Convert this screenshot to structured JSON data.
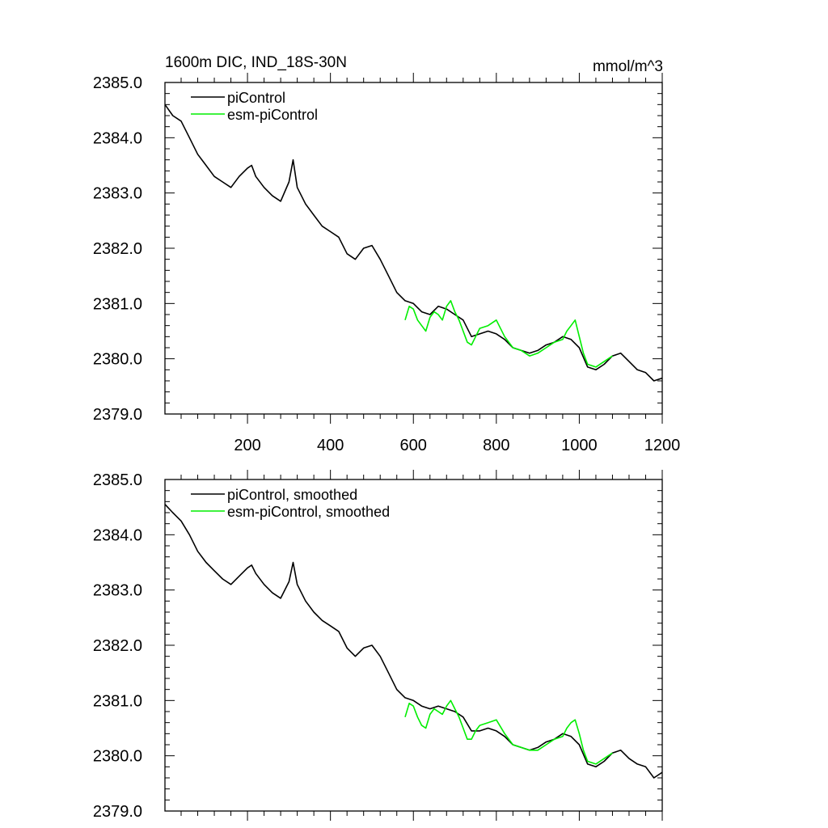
{
  "figure": {
    "title": "1600m DIC, IND_18S-30N",
    "units": "mmol/m^3",
    "colors": {
      "piControl": "#000000",
      "esm-piControl": "#00ee00",
      "axis": "#000000",
      "background": "#ffffff"
    }
  },
  "chart_data": [
    {
      "type": "line",
      "panel": "top",
      "title": "1600m DIC, IND_18S-30N",
      "units_label": "mmol/m^3",
      "xlim": [
        1,
        1200
      ],
      "ylim": [
        2379.0,
        2385.0
      ],
      "x_ticks": [
        200,
        400,
        600,
        800,
        1000,
        1200
      ],
      "x_tick_labels": [
        "200",
        "400",
        "600",
        "800",
        "1000",
        "1200"
      ],
      "y_ticks": [
        2379.0,
        2380.0,
        2381.0,
        2382.0,
        2383.0,
        2384.0,
        2385.0
      ],
      "y_tick_labels": [
        "2379.0",
        "2380.0",
        "2381.0",
        "2382.0",
        "2383.0",
        "2384.0",
        "2385.0"
      ],
      "legend": [
        "piControl",
        "esm-piControl"
      ],
      "legend_position": "top-left",
      "series": [
        {
          "name": "piControl",
          "color": "#000000",
          "x": [
            1,
            20,
            40,
            60,
            80,
            100,
            120,
            140,
            160,
            180,
            200,
            210,
            220,
            240,
            260,
            280,
            300,
            310,
            320,
            340,
            360,
            380,
            400,
            420,
            440,
            460,
            480,
            500,
            520,
            540,
            560,
            580,
            600,
            620,
            640,
            660,
            680,
            700,
            720,
            740,
            760,
            780,
            800,
            820,
            840,
            860,
            880,
            900,
            920,
            940,
            960,
            980,
            1000,
            1020,
            1040,
            1060,
            1080,
            1100,
            1120,
            1140,
            1160,
            1180,
            1200
          ],
          "y": [
            2384.6,
            2384.4,
            2384.3,
            2384.0,
            2383.7,
            2383.5,
            2383.3,
            2383.2,
            2383.1,
            2383.3,
            2383.45,
            2383.5,
            2383.3,
            2383.1,
            2382.95,
            2382.85,
            2383.2,
            2383.6,
            2383.1,
            2382.8,
            2382.6,
            2382.4,
            2382.3,
            2382.2,
            2381.9,
            2381.8,
            2382.0,
            2382.05,
            2381.8,
            2381.5,
            2381.2,
            2381.05,
            2381.0,
            2380.85,
            2380.8,
            2380.95,
            2380.9,
            2380.8,
            2380.7,
            2380.4,
            2380.45,
            2380.5,
            2380.45,
            2380.35,
            2380.2,
            2380.15,
            2380.1,
            2380.15,
            2380.25,
            2380.3,
            2380.4,
            2380.35,
            2380.2,
            2379.85,
            2379.8,
            2379.9,
            2380.05,
            2380.1,
            2379.95,
            2379.8,
            2379.75,
            2379.6,
            2379.65
          ]
        },
        {
          "name": "esm-piControl",
          "color": "#00ee00",
          "x": [
            580,
            590,
            600,
            610,
            620,
            630,
            640,
            650,
            660,
            670,
            680,
            690,
            700,
            710,
            720,
            730,
            740,
            750,
            760,
            780,
            800,
            820,
            840,
            860,
            880,
            900,
            920,
            940,
            960,
            970,
            980,
            990,
            1000,
            1010,
            1020,
            1040,
            1060,
            1080
          ],
          "y": [
            2380.7,
            2380.95,
            2380.9,
            2380.7,
            2380.6,
            2380.5,
            2380.75,
            2380.85,
            2380.8,
            2380.7,
            2380.95,
            2381.05,
            2380.85,
            2380.7,
            2380.5,
            2380.3,
            2380.25,
            2380.4,
            2380.55,
            2380.6,
            2380.7,
            2380.4,
            2380.2,
            2380.15,
            2380.05,
            2380.1,
            2380.2,
            2380.3,
            2380.35,
            2380.5,
            2380.6,
            2380.7,
            2380.4,
            2380.1,
            2379.9,
            2379.85,
            2379.95,
            2380.05
          ]
        }
      ]
    },
    {
      "type": "line",
      "panel": "bottom",
      "xlim": [
        1,
        1200
      ],
      "ylim": [
        2379.0,
        2385.0
      ],
      "x_ticks": [
        200,
        400,
        600,
        800,
        1000,
        1200
      ],
      "y_ticks": [
        2379.0,
        2380.0,
        2381.0,
        2382.0,
        2383.0,
        2384.0,
        2385.0
      ],
      "y_tick_labels": [
        "2379.0",
        "2380.0",
        "2381.0",
        "2382.0",
        "2383.0",
        "2384.0",
        "2385.0"
      ],
      "legend": [
        "piControl, smoothed",
        "esm-piControl, smoothed"
      ],
      "legend_position": "top-left",
      "series": [
        {
          "name": "piControl, smoothed",
          "color": "#000000",
          "x": [
            1,
            20,
            40,
            60,
            80,
            100,
            120,
            140,
            160,
            180,
            200,
            210,
            220,
            240,
            260,
            280,
            300,
            310,
            320,
            340,
            360,
            380,
            400,
            420,
            440,
            460,
            480,
            500,
            520,
            540,
            560,
            580,
            600,
            620,
            640,
            660,
            680,
            700,
            720,
            740,
            760,
            780,
            800,
            820,
            840,
            860,
            880,
            900,
            920,
            940,
            960,
            980,
            1000,
            1020,
            1040,
            1060,
            1080,
            1100,
            1120,
            1140,
            1160,
            1180,
            1200
          ],
          "y": [
            2384.55,
            2384.4,
            2384.25,
            2384.0,
            2383.7,
            2383.5,
            2383.35,
            2383.2,
            2383.1,
            2383.25,
            2383.4,
            2383.45,
            2383.3,
            2383.1,
            2382.95,
            2382.85,
            2383.15,
            2383.5,
            2383.1,
            2382.8,
            2382.6,
            2382.45,
            2382.35,
            2382.25,
            2381.95,
            2381.8,
            2381.95,
            2382.0,
            2381.8,
            2381.5,
            2381.2,
            2381.05,
            2381.0,
            2380.9,
            2380.85,
            2380.9,
            2380.85,
            2380.8,
            2380.7,
            2380.45,
            2380.45,
            2380.5,
            2380.45,
            2380.35,
            2380.2,
            2380.15,
            2380.1,
            2380.15,
            2380.25,
            2380.3,
            2380.4,
            2380.35,
            2380.2,
            2379.85,
            2379.8,
            2379.9,
            2380.05,
            2380.1,
            2379.95,
            2379.85,
            2379.8,
            2379.6,
            2379.7
          ]
        },
        {
          "name": "esm-piControl, smoothed",
          "color": "#00ee00",
          "x": [
            580,
            590,
            600,
            610,
            620,
            630,
            640,
            650,
            660,
            670,
            680,
            690,
            700,
            710,
            720,
            730,
            740,
            750,
            760,
            780,
            800,
            820,
            840,
            860,
            880,
            900,
            920,
            940,
            960,
            970,
            980,
            990,
            1000,
            1010,
            1020,
            1040,
            1060,
            1080
          ],
          "y": [
            2380.7,
            2380.95,
            2380.9,
            2380.7,
            2380.55,
            2380.5,
            2380.75,
            2380.85,
            2380.8,
            2380.75,
            2380.9,
            2381.0,
            2380.85,
            2380.7,
            2380.5,
            2380.3,
            2380.3,
            2380.45,
            2380.55,
            2380.6,
            2380.65,
            2380.4,
            2380.2,
            2380.15,
            2380.1,
            2380.1,
            2380.2,
            2380.3,
            2380.35,
            2380.5,
            2380.6,
            2380.65,
            2380.4,
            2380.1,
            2379.9,
            2379.85,
            2379.95,
            2380.05
          ]
        }
      ]
    }
  ]
}
